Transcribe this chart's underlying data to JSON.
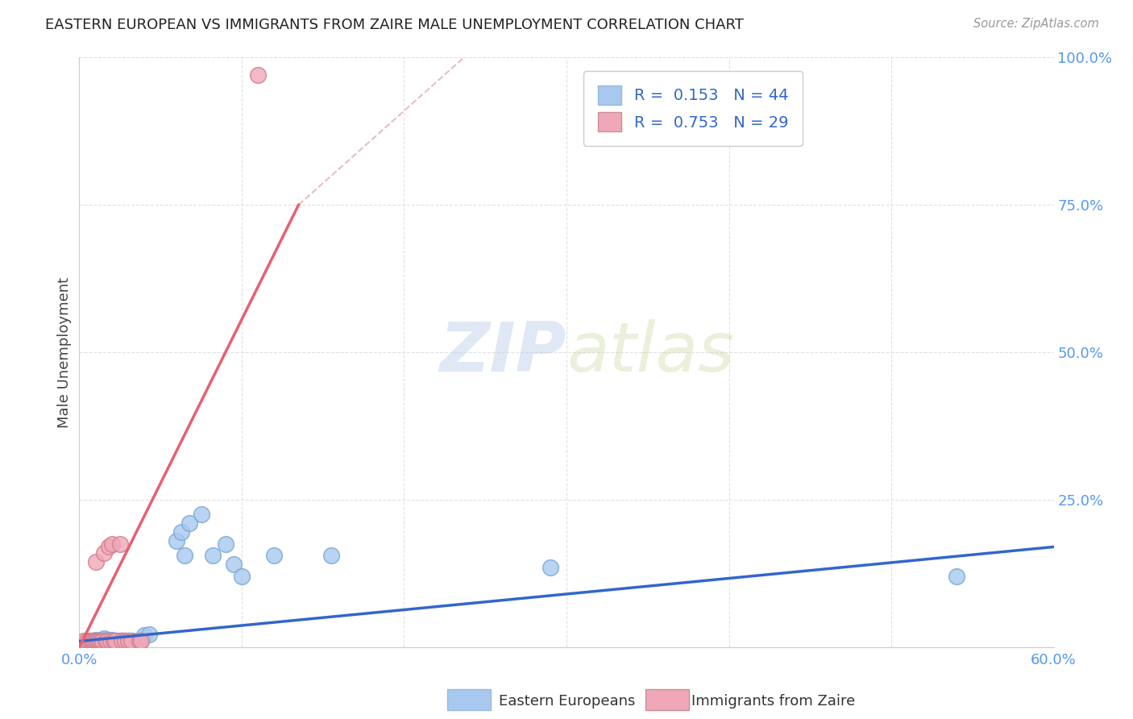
{
  "title": "EASTERN EUROPEAN VS IMMIGRANTS FROM ZAIRE MALE UNEMPLOYMENT CORRELATION CHART",
  "source": "Source: ZipAtlas.com",
  "ylabel_label": "Male Unemployment",
  "x_min": 0.0,
  "x_max": 0.6,
  "y_min": 0.0,
  "y_max": 1.0,
  "x_ticks": [
    0.0,
    0.1,
    0.2,
    0.3,
    0.4,
    0.5,
    0.6
  ],
  "x_tick_labels": [
    "0.0%",
    "",
    "",
    "",
    "",
    "",
    "60.0%"
  ],
  "y_ticks": [
    0.0,
    0.25,
    0.5,
    0.75,
    1.0
  ],
  "y_tick_labels": [
    "",
    "25.0%",
    "50.0%",
    "75.0%",
    "100.0%"
  ],
  "blue_R": 0.153,
  "blue_N": 44,
  "pink_R": 0.753,
  "pink_N": 29,
  "blue_color": "#A8C8F0",
  "pink_color": "#F0A8B8",
  "blue_line_color": "#3366CC",
  "pink_line_color": "#E86070",
  "grid_color": "#DDDDDD",
  "background_color": "#FFFFFF",
  "watermark_zip": "ZIP",
  "watermark_atlas": "atlas",
  "legend_label_blue": "Eastern Europeans",
  "legend_label_pink": "Immigrants from Zaire",
  "blue_scatter_x": [
    0.005,
    0.008,
    0.01,
    0.01,
    0.012,
    0.013,
    0.015,
    0.015,
    0.015,
    0.016,
    0.017,
    0.018,
    0.018,
    0.019,
    0.02,
    0.02,
    0.02,
    0.022,
    0.023,
    0.024,
    0.025,
    0.026,
    0.026,
    0.027,
    0.028,
    0.03,
    0.031,
    0.033,
    0.038,
    0.04,
    0.043,
    0.06,
    0.063,
    0.065,
    0.068,
    0.075,
    0.082,
    0.09,
    0.095,
    0.1,
    0.12,
    0.155,
    0.29,
    0.54
  ],
  "blue_scatter_y": [
    0.01,
    0.01,
    0.01,
    0.012,
    0.01,
    0.012,
    0.01,
    0.012,
    0.015,
    0.01,
    0.01,
    0.01,
    0.012,
    0.01,
    0.01,
    0.012,
    0.01,
    0.01,
    0.01,
    0.01,
    0.01,
    0.01,
    0.01,
    0.01,
    0.01,
    0.01,
    0.01,
    0.01,
    0.01,
    0.02,
    0.022,
    0.18,
    0.195,
    0.155,
    0.21,
    0.225,
    0.155,
    0.175,
    0.14,
    0.12,
    0.155,
    0.155,
    0.135,
    0.12
  ],
  "pink_scatter_x": [
    0.003,
    0.005,
    0.006,
    0.007,
    0.008,
    0.008,
    0.009,
    0.01,
    0.01,
    0.011,
    0.012,
    0.013,
    0.014,
    0.015,
    0.016,
    0.017,
    0.018,
    0.019,
    0.02,
    0.021,
    0.022,
    0.025,
    0.026,
    0.028,
    0.03,
    0.032,
    0.037,
    0.038,
    0.11
  ],
  "pink_scatter_y": [
    0.01,
    0.01,
    0.01,
    0.01,
    0.01,
    0.01,
    0.01,
    0.01,
    0.145,
    0.01,
    0.01,
    0.01,
    0.01,
    0.16,
    0.01,
    0.01,
    0.17,
    0.01,
    0.175,
    0.01,
    0.01,
    0.175,
    0.01,
    0.01,
    0.01,
    0.01,
    0.01,
    0.01,
    0.97
  ],
  "blue_line_x0": 0.0,
  "blue_line_x1": 0.6,
  "blue_line_y0": 0.01,
  "blue_line_y1": 0.17,
  "pink_line_x0": 0.0,
  "pink_line_x1": 0.135,
  "pink_line_y0": 0.0,
  "pink_line_y1": 0.75,
  "dashed_line_x0": 0.135,
  "dashed_line_x1": 0.245,
  "dashed_line_y0": 0.75,
  "dashed_line_y1": 1.02
}
